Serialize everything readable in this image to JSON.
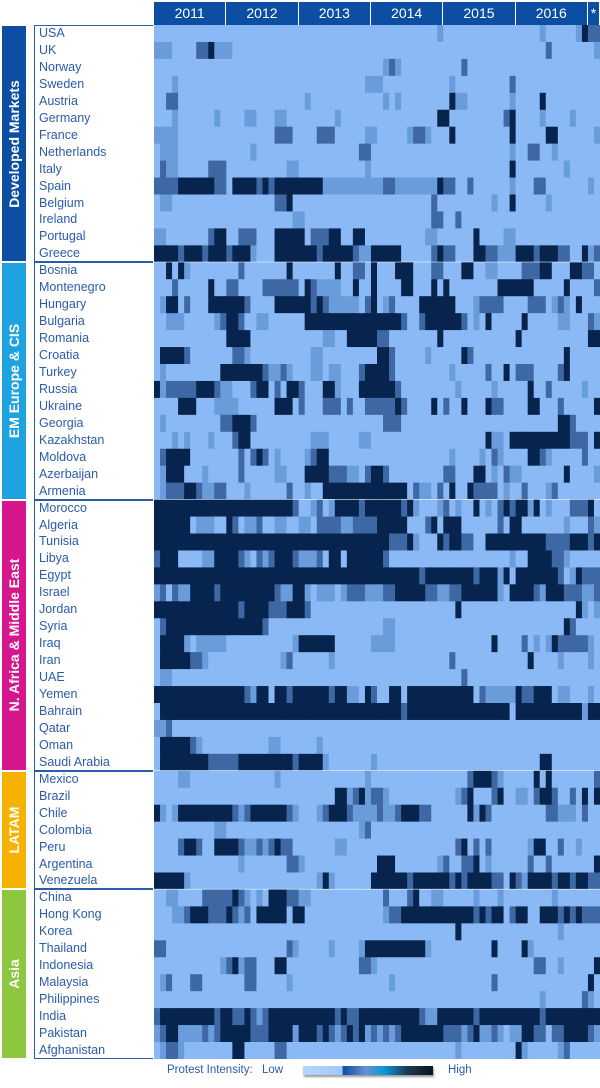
{
  "chart_data": {
    "type": "heatmap",
    "x_labels": [
      "2011",
      "2012",
      "2013",
      "2014",
      "2015",
      "2016",
      "*"
    ],
    "months_per_year": 12,
    "extra_months": 2,
    "level_colors": [
      "#a6cbf9",
      "#8ab9f6",
      "#6a9cdb",
      "#3d68a4",
      "#06244d"
    ],
    "legend": {
      "label": "Protest Intensity:",
      "low": "Low",
      "high": "High",
      "gradient": [
        "#b8d6fa",
        "#a0c8f8",
        "#0b4ea2",
        "#6a90cf",
        "#0a9ad8",
        "#1d3a52",
        "#0a1420"
      ]
    },
    "regions": [
      {
        "name": "Developed Markets",
        "color": "#0b4ea2",
        "countries": [
          {
            "name": "USA",
            "levels": "11111111111111111111111111111111111111111111111211111111111111112111112433"
          },
          {
            "name": "UK",
            "levels": "22211113342221111111111111111111111111111111111111111111111111111311111112"
          },
          {
            "name": "Norway",
            "levels": "11111111111111111111111111111111111111232111111111131111111111111111111111"
          },
          {
            "name": "Sweden",
            "levels": "11121111111111111111111111111111111222111111111112111111111311111111111111"
          },
          {
            "name": "Austria",
            "levels": "11331111111111111111111112111111111111212111111114221111111211114111111111"
          },
          {
            "name": "Germany",
            "levels": "11121111112111122111221111111121111111111111111441111111113411112111121111"
          },
          {
            "name": "France",
            "levels": "22221111111111111111333111133311111221111123321114111111111411111441111112"
          },
          {
            "name": "Netherlands",
            "levels": "12221111111111112111111111111111113311111111111111111111111211331121111111"
          },
          {
            "name": "Italy",
            "levels": "13221111133311111111112211111111111211111111111111111111111411111111211111"
          },
          {
            "name": "Spain",
            "levels": "33334444443314444343444444442222222222332222222433113111111211133111111121"
          },
          {
            "name": "Belgium",
            "levels": "12211111111111111111334111111111111111111111113111111111211411111211111111"
          },
          {
            "name": "Ireland",
            "levels": "11111111111111111111111221111111111111111111113311311111111111111111111111"
          },
          {
            "name": "Portugal",
            "levels": "22111111134411333111444441333441144111111111122111111411112211111111111111"
          },
          {
            "name": "Greece",
            "levels": "44443444344434442111444444434444432244444111113433111443322244434443311423"
          }
        ]
      },
      {
        "name": "EM Europe & CIS",
        "color": "#1fa3e0",
        "countries": [
          {
            "name": "Bosnia",
            "levels": "11414211111111311111114111111141133141114441113311144112211113334411144331442 1"
          },
          {
            "name": "Montenegro",
            "levels": "11131111141133111133333314322221141141111441114141111111144444411111411113"
          },
          {
            "name": "Hungary",
            "levels": "12441311144444431111444444343222221341231111444444111233331111333123214111"
          },
          {
            "name": "Bulgaria",
            "levels": "11222111112344311221111114444444444444444311344444431214111114111112211132 11"
          },
          {
            "name": "Romania",
            "levels": "11111111111144441111111111112211444443311111111411111111111141111111111144"
          },
          {
            "name": "Croatia",
            "levels": "14444311111113321111111111221111111114431111121111143111111111111111411111"
          },
          {
            "name": "Turkey",
            "levels": "12111111111444444432232111221221113444431111111112111113114133311113411111"
          },
          {
            "name": "Russia",
            "levels": "42333334443221113441314431114421114444443111111111211111211111411311111211"
          },
          {
            "name": "Ukraine",
            "levels": "11114441112222111111444131113331311333334311114131141114331111441113111114"
          },
          {
            "name": "Georgia",
            "levels": "12111111111334443111111111111111111111333111111111111111111111111114431111111"
          },
          {
            "name": "Kazakhstan",
            "levels": "11121211121113441111111111222111112211111111111111111114221444444444433314 14"
          },
          {
            "name": "Moldova",
            "levels": "13444411111111313431211112344111111111111111111112111121321111443211111311111"
          },
          {
            "name": "Azerbaijan",
            "levels": "12444111211111311111221114444333221344311111111133111441213221111111411112"
          },
          {
            "name": "Armenia",
            "levels": "12333443223311121111113112114444444444444413221314114333312113111231111111"
          }
        ]
      },
      {
        "name": "N. Africa & Middle East",
        "color": "#d6168c",
        "countries": [
          {
            "name": "Morocco",
            "levels": "44444444444444444444444311231244443444444342111231211412134344241211133341"
          },
          {
            "name": "Algeria",
            "levels": "44444412221143122311221122133332233334444411134144411111131441111111211132"
          },
          {
            "name": "Tunisia",
            "levels": "44444444444444444444444444444444444444433342111434433114444444444333344434 3"
          },
          {
            "name": "Libya",
            "levels": "34441111224444321323444322231441444444311111111111111111111211444433211111111"
          },
          {
            "name": "Egypt",
            "levels": "44444444444444444444444444444444444444444444344444444344424144444443124333"
          },
          {
            "name": "Israel",
            "levels": "23132244443444444444322442122212333222334444433223344444421444432444333223"
          },
          {
            "name": "Jordan",
            "levels": "44444444444444344443334443111111111111111111111111411111111111111111114212111 1"
          },
          {
            "name": "Syria",
            "levels": "13444444444444444431111111111111111111221111111111111111111111111111431111111"
          },
          {
            "name": "Iraq",
            "levels": "14444212222211111111111244444411111122221111111111111111411113121243333321"
          },
          {
            "name": "Iran",
            "levels": "14444433211111111111123111111211111111111111111113111111111111411112111121 11"
          },
          {
            "name": "UAE",
            "levels": "12211111111111111111111111111111111111111111111111131111111111111111111111"
          },
          {
            "name": "Yemen",
            "levels": "44444444444444432441443444444344221431144144444444444132222243344412211121 1"
          },
          {
            "name": "Bahrain",
            "levels": "14444444444444444444444444444444444444444344444444444444444144444444444244"
          },
          {
            "name": "Qatar",
            "levels": "22311111111111111111111111111111111111111111111111111111111111111111111111"
          },
          {
            "name": "Oman",
            "levels": "14444432111111111112211111121111111111111111111111111111111111111111111111"
          },
          {
            "name": "Saudi Arabia",
            "levels": "14444444433333444444444344442111111121111111111111111111111111114411111111 1111"
          }
        ]
      },
      {
        "name": "LATAM",
        "color": "#f7b200",
        "countries": [
          {
            "name": "Mexico",
            "levels": "11112211111111111111211111111111111211111111111111113444321111141411111113332 11313"
          },
          {
            "name": "Brazil",
            "levels": "11111111111111111111111111111144234233211111111111234111341122134431131414"
          },
          {
            "name": "Chile",
            "levels": "42124444444443234444443211123444322223223444331111114243111111111332221311"
          },
          {
            "name": "Colombia",
            "levels": "11111111112211111111111111111111112311111111111111111111111111111111111111"
          },
          {
            "name": "Peru",
            "levels": "11113443114444322323433111111122111111111111111111341313111111244113112111"
          },
          {
            "name": "Argentina",
            "levels": "11111111111111211111113321111111111114441111111231133412111111311311111114213"
          },
          {
            "name": "Venezuela",
            "levels": "44444211111111111111111111124211111144444434444443434444331432444434434433"
          }
        ]
      },
      {
        "name": "Asia",
        "color": "#8dc63f",
        "countries": [
          {
            "name": "China",
            "levels": "11221111333334321214443322111111111111311134112211111211121111111121111111111"
          },
          {
            "name": "Hong Kong",
            "levels": "11122344433343231444441441111111111111233444444444444343441344114443434333434 3"
          },
          {
            "name": "Korea",
            "levels": "11111111111111111111111111111111111111111111111111411111111111111112111111"
          },
          {
            "name": "Thailand",
            "levels": "33111111111111111111113211111211112444444444421111111111411114211111111111111"
          },
          {
            "name": "Indonesia",
            "levels": "11111111111234233111441111111111113321111111111111111111111111133112111114 33"
          },
          {
            "name": "Malaysia",
            "levels": "12311133111111133111112111111111111111121111111111111111311111111111111141 1"
          },
          {
            "name": "Philippines",
            "levels": "11111111111111111111111111111111111111111111111111111111111111112111111321"
          },
          {
            "name": "India",
            "levels": "34444444443443343234444444444434334444444444322444444344444444443444444444"
          },
          {
            "name": "Pakistan",
            "levels": "23442222323444443334444244434323434232323444444433323422321224433133444432"
          },
          {
            "name": "Afghanistan",
            "levels": "12332111111114411111331111111111111111111111111111211111111142111112311111111"
          }
        ]
      }
    ]
  }
}
